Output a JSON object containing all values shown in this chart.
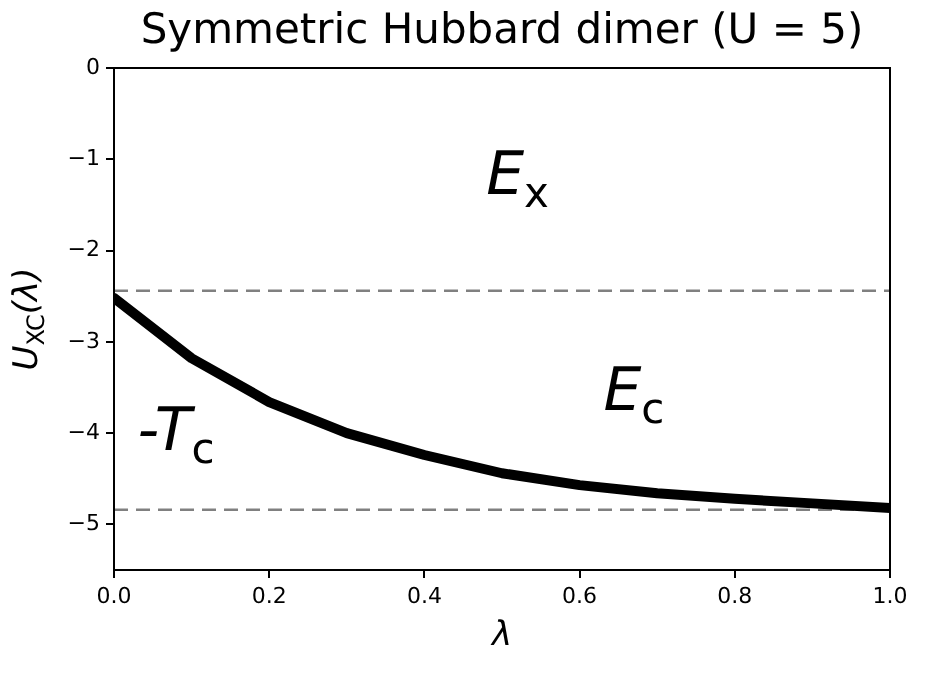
{
  "chart_data": {
    "type": "line",
    "title": "Symmetric Hubbard dimer (U = 5)",
    "xlabel": "λ",
    "ylabel": "U$_{XC}$(λ)",
    "x": [
      0,
      0.1,
      0.2,
      0.3,
      0.4,
      0.5,
      0.6,
      0.7,
      0.8,
      0.9,
      1.0
    ],
    "series": [
      {
        "color": "#000000",
        "values": [
          -2.52,
          -3.18,
          -3.66,
          -4.0,
          -4.24,
          -4.44,
          -4.57,
          -4.66,
          -4.72,
          -4.77,
          -4.82
        ]
      }
    ],
    "xlim": [
      0,
      1
    ],
    "xticks": [
      {
        "value": 0,
        "label": "0.0"
      },
      {
        "value": 0.2,
        "label": "0.2"
      },
      {
        "value": 0.4,
        "label": "0.4"
      },
      {
        "value": 0.6,
        "label": "0.6"
      },
      {
        "value": 0.8,
        "label": "0.8"
      },
      {
        "value": 1,
        "label": "1.0"
      }
    ],
    "ylim": [
      -5.5,
      0
    ],
    "yticks": [
      {
        "value": 0,
        "label": "0"
      },
      {
        "value": -1,
        "label": "−1"
      },
      {
        "value": -2,
        "label": "−2"
      },
      {
        "value": -3,
        "label": "−3"
      },
      {
        "value": -4,
        "label": "−4"
      },
      {
        "value": -5,
        "label": "−5"
      }
    ],
    "ref_lines": [
      {
        "axis": "y",
        "value": -2.44,
        "color": "#808080",
        "line_style": "dashed"
      },
      {
        "axis": "y",
        "value": -4.84,
        "color": "#808080",
        "line_style": "dashed"
      }
    ],
    "annotations": [
      "E$_{x}$",
      "E$_{c}$",
      "-T$_{c}$"
    ],
    "grid": false,
    "legend": false,
    "marker": "none",
    "line_style": "solid"
  }
}
